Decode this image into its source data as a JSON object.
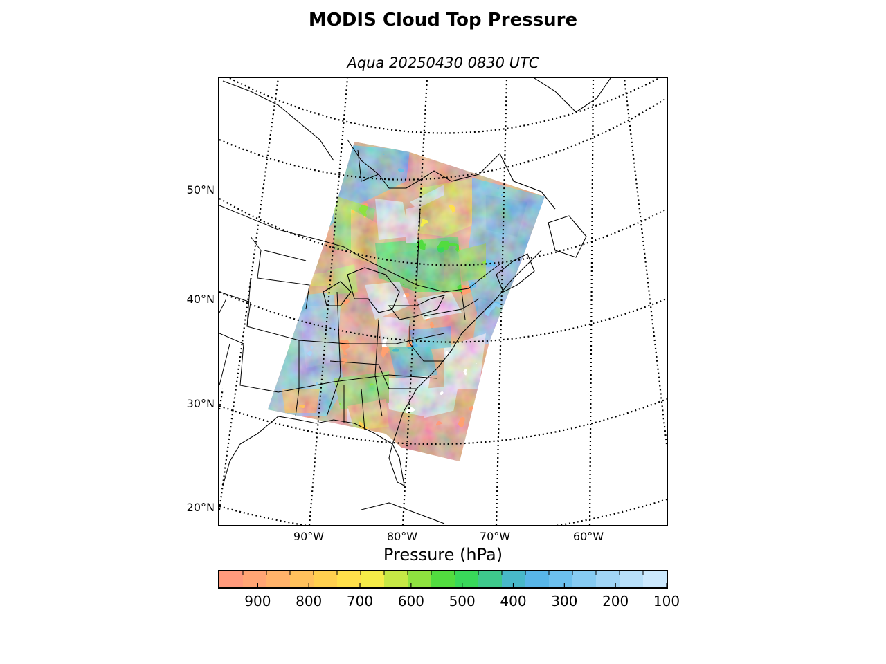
{
  "title": "MODIS Cloud Top Pressure",
  "subtitle": "Aqua 20250430 0830 UTC",
  "colors": {
    "background": "#ffffff",
    "coastline": "#000000",
    "graticule": "#000000"
  },
  "map": {
    "type": "map",
    "projection": "lambert-conformal",
    "graticule": "dotted",
    "lat_labels": [
      "50°N",
      "40°N",
      "30°N",
      "20°N"
    ],
    "lon_labels": [
      "90°W",
      "80°W",
      "70°W",
      "60°W"
    ],
    "swath": "MODIS cloud top pressure swath over eastern North America"
  },
  "colorbar": {
    "label": "Pressure (hPa)",
    "ticks": [
      "900",
      "800",
      "700",
      "600",
      "500",
      "400",
      "300",
      "200",
      "100"
    ],
    "range": [
      975,
      100
    ],
    "colors": [
      "#ff9a7c",
      "#ffa574",
      "#ffb26a",
      "#ffc15c",
      "#ffd04f",
      "#ffe04a",
      "#f5ec48",
      "#c6e845",
      "#8ee23f",
      "#52dc3f",
      "#39d85a",
      "#3ec98c",
      "#48b9c9",
      "#58b6e8",
      "#6cc0ee",
      "#86cbf2",
      "#a0d5f6",
      "#b8e0fa",
      "#cbe8fd"
    ]
  }
}
